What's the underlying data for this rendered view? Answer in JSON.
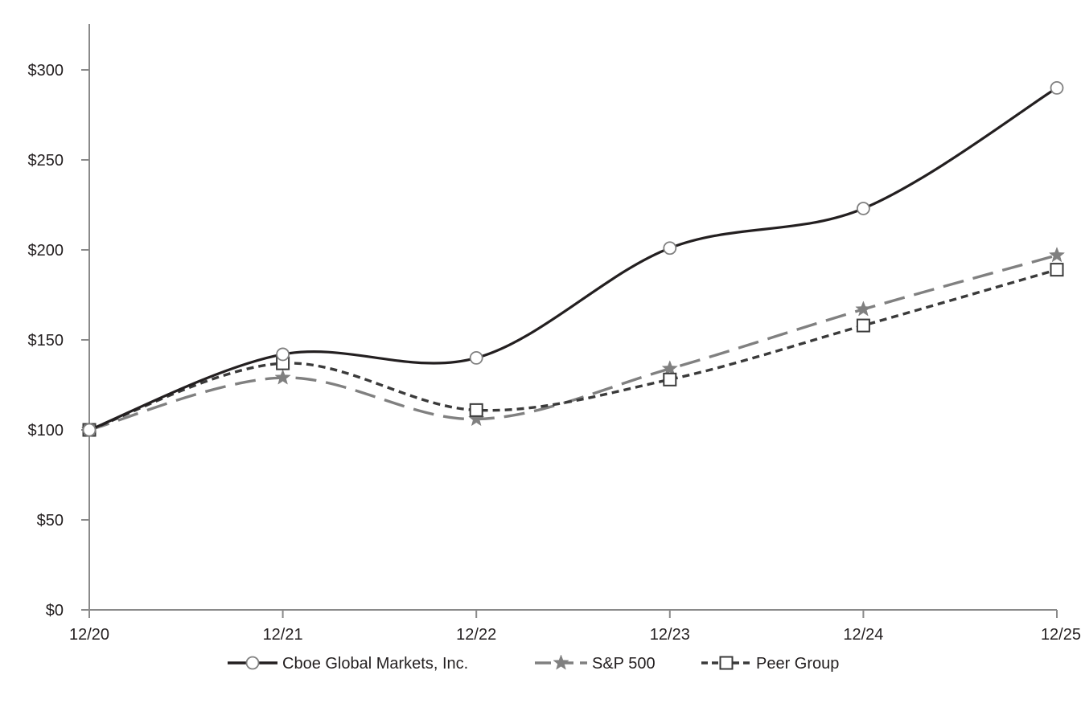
{
  "chart_data": {
    "type": "line",
    "title": "",
    "xlabel": "",
    "ylabel": "",
    "categories": [
      "12/20",
      "12/21",
      "12/22",
      "12/23",
      "12/24",
      "12/25"
    ],
    "ylim": [
      0,
      325
    ],
    "yticks": [
      0,
      50,
      100,
      150,
      200,
      250,
      300
    ],
    "ytick_labels": [
      "$0",
      "$50",
      "$100",
      "$150",
      "$200",
      "$250",
      "$300"
    ],
    "grid": false,
    "legend_position": "bottom",
    "series": [
      {
        "name": "Cboe Global Markets, Inc.",
        "values": [
          100,
          142,
          140,
          201,
          223,
          290
        ],
        "color": "#231f20",
        "marker": "circle",
        "dash": "solid"
      },
      {
        "name": "S&P 500",
        "values": [
          100,
          129,
          106,
          134,
          167,
          197
        ],
        "color": "#808080",
        "marker": "star",
        "dash": "long-dash"
      },
      {
        "name": "Peer Group",
        "values": [
          100,
          137,
          111,
          128,
          158,
          189
        ],
        "color": "#3a3a3a",
        "marker": "square",
        "dash": "short-dash"
      }
    ]
  }
}
